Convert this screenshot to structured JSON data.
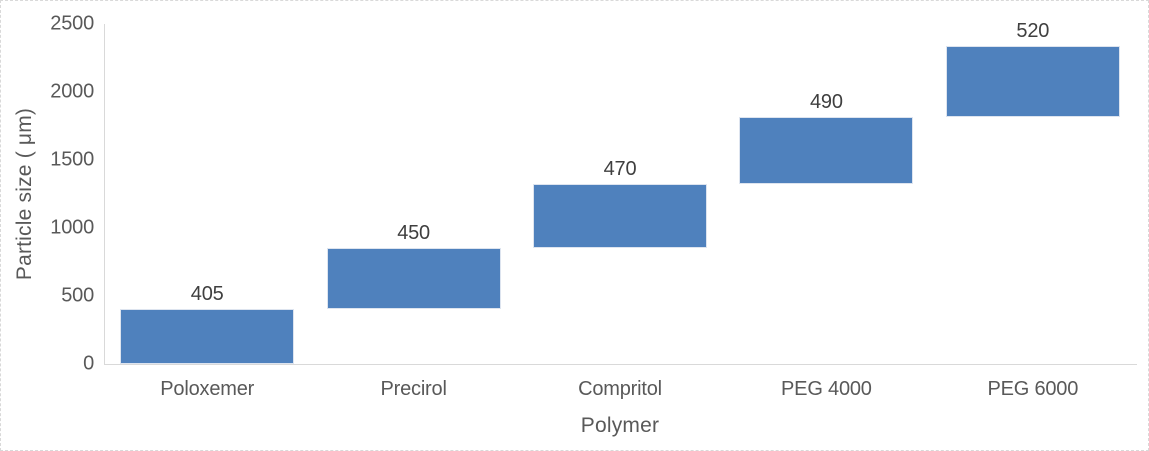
{
  "chart_data": {
    "type": "bar",
    "subtype": "waterfall-cumulative",
    "title": "",
    "xlabel": "Polymer",
    "ylabel": "Particle size ( μm)",
    "categories": [
      "Poloxemer",
      "Precirol",
      "Compritol",
      "PEG 4000",
      "PEG 6000"
    ],
    "values": [
      405,
      450,
      470,
      490,
      520
    ],
    "data_labels": [
      "405",
      "450",
      "470",
      "490",
      "520"
    ],
    "cumulative_tops": [
      405,
      855,
      1325,
      1815,
      2335
    ],
    "ylim": [
      0,
      2500
    ],
    "yticks": [
      0,
      500,
      1000,
      1500,
      2000,
      2500
    ],
    "grid": false,
    "legend": false,
    "colors": {
      "bar_fill": "#4F81BD",
      "bar_edge": "#dde4ef",
      "axis_line": "#d9d9d9",
      "tick_label": "#595959",
      "data_label": "#3f3f3f",
      "chart_border": "#d9d9d9",
      "background": "#ffffff"
    }
  }
}
